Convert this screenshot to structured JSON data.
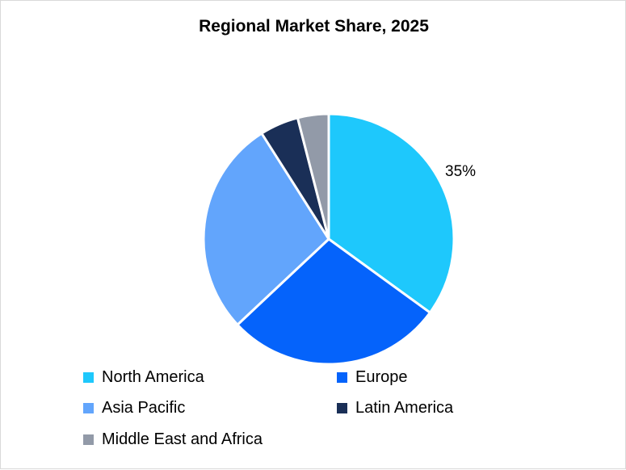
{
  "chart_data": {
    "type": "pie",
    "title": "Regional Market Share, 2025",
    "slices": [
      {
        "name": "North America",
        "value": 35,
        "color": "#1ec8fc",
        "label": "35%"
      },
      {
        "name": "Europe",
        "value": 28,
        "color": "#0563fb",
        "label": ""
      },
      {
        "name": "Asia Pacific",
        "value": 28,
        "color": "#62a5fc",
        "label": ""
      },
      {
        "name": "Latin America",
        "value": 5,
        "color": "#1a2f57",
        "label": ""
      },
      {
        "name": "Middle East and Africa",
        "value": 4,
        "color": "#929aa8",
        "label": ""
      }
    ],
    "legend_position": "bottom"
  }
}
